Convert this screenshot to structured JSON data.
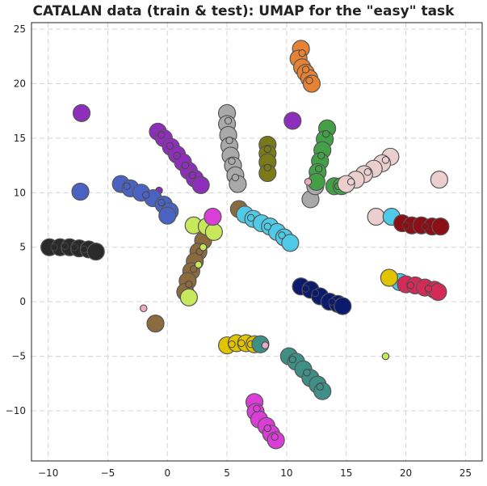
{
  "chart_data": {
    "type": "scatter",
    "title": "CATALAN data (train & test): UMAP for the \"easy\" task",
    "xlabel": "",
    "ylabel": "",
    "xlim": [
      -11.4,
      26.4
    ],
    "ylim": [
      -14.6,
      25.6
    ],
    "xticks": [
      -10,
      -5,
      0,
      5,
      10,
      15,
      20,
      25
    ],
    "yticks": [
      -10,
      -5,
      0,
      5,
      10,
      15,
      20,
      25
    ],
    "grid": true,
    "legend": "none",
    "series": [
      {
        "color": "#e88233",
        "big": [
          [
            11.2,
            23.2
          ],
          [
            11.0,
            22.3
          ],
          [
            11.3,
            21.5
          ],
          [
            11.6,
            21.0
          ],
          [
            11.9,
            20.5
          ],
          [
            12.1,
            20.0
          ]
        ],
        "small": [
          [
            11.3,
            22.8
          ],
          [
            11.6,
            21.3
          ],
          [
            11.9,
            20.3
          ]
        ]
      },
      {
        "color": "#8e2fbb",
        "big": [
          [
            -7.2,
            17.3
          ],
          [
            10.5,
            16.6
          ],
          [
            -0.8,
            15.6
          ],
          [
            -0.3,
            15.0
          ],
          [
            0.3,
            14.2
          ],
          [
            0.8,
            13.5
          ],
          [
            1.3,
            12.8
          ],
          [
            1.8,
            12.0
          ],
          [
            2.3,
            11.3
          ],
          [
            2.8,
            10.7
          ]
        ],
        "small": [
          [
            -0.5,
            15.3
          ],
          [
            0.2,
            14.3
          ],
          [
            0.8,
            13.4
          ],
          [
            1.5,
            12.5
          ],
          [
            2.1,
            11.6
          ],
          [
            -0.7,
            10.2
          ],
          [
            4.0,
            7.8
          ],
          [
            3.4,
            6.2
          ]
        ]
      },
      {
        "color": "#a9a9a9",
        "big": [
          [
            5.0,
            17.3
          ],
          [
            5.0,
            16.3
          ],
          [
            5.1,
            15.3
          ],
          [
            5.2,
            14.3
          ],
          [
            5.3,
            13.4
          ],
          [
            5.5,
            12.5
          ],
          [
            5.7,
            11.6
          ],
          [
            5.9,
            10.8
          ],
          [
            12.0,
            9.4
          ],
          [
            12.4,
            10.6
          ]
        ],
        "small": [
          [
            5.1,
            16.6
          ],
          [
            5.2,
            14.8
          ],
          [
            5.4,
            12.9
          ],
          [
            5.7,
            11.4
          ]
        ]
      },
      {
        "color": "#43a047",
        "big": [
          [
            13.4,
            15.9
          ],
          [
            13.2,
            14.9
          ],
          [
            13.0,
            13.9
          ],
          [
            12.8,
            12.9
          ],
          [
            12.6,
            11.9
          ],
          [
            12.5,
            11.0
          ],
          [
            14.0,
            10.6
          ],
          [
            14.6,
            10.6
          ]
        ],
        "small": [
          [
            13.3,
            15.4
          ],
          [
            12.9,
            13.4
          ],
          [
            12.7,
            12.2
          ],
          [
            14.3,
            10.6
          ]
        ]
      },
      {
        "color": "#7a7a18",
        "big": [
          [
            8.4,
            14.4
          ],
          [
            8.4,
            13.6
          ],
          [
            8.4,
            12.8
          ],
          [
            8.4,
            11.8
          ]
        ],
        "small": [
          [
            8.4,
            14.0
          ],
          [
            8.4,
            12.3
          ]
        ]
      },
      {
        "color": "#ebcfcf",
        "big": [
          [
            18.7,
            13.3
          ],
          [
            18.0,
            12.7
          ],
          [
            17.3,
            12.2
          ],
          [
            16.5,
            11.7
          ],
          [
            15.8,
            11.2
          ],
          [
            15.0,
            10.8
          ],
          [
            17.5,
            7.8
          ],
          [
            22.8,
            11.2
          ]
        ],
        "small": [
          [
            18.3,
            13.0
          ],
          [
            16.8,
            11.9
          ],
          [
            15.4,
            11.0
          ]
        ]
      },
      {
        "color": "#4a63c2",
        "big": [
          [
            -7.3,
            10.1
          ],
          [
            -3.9,
            10.8
          ],
          [
            -3.1,
            10.4
          ],
          [
            -2.2,
            10.0
          ],
          [
            -1.2,
            9.5
          ],
          [
            -0.3,
            8.9
          ],
          [
            0.2,
            8.3
          ],
          [
            0.0,
            7.9
          ]
        ],
        "small": [
          [
            -3.4,
            10.6
          ],
          [
            -1.8,
            9.8
          ],
          [
            -0.5,
            9.1
          ]
        ]
      },
      {
        "color": "#2a2a2a",
        "big": [
          [
            -9.9,
            5.0
          ],
          [
            -9.0,
            5.0
          ],
          [
            -8.2,
            5.0
          ],
          [
            -7.4,
            4.9
          ],
          [
            -6.6,
            4.8
          ],
          [
            -6.0,
            4.6
          ]
        ],
        "small": [
          [
            -9.5,
            5.0
          ],
          [
            -8.6,
            5.1
          ],
          [
            -7.8,
            5.0
          ],
          [
            -7.0,
            4.8
          ]
        ]
      },
      {
        "color": "#8b6b3d",
        "big": [
          [
            3.0,
            5.6
          ],
          [
            2.6,
            4.6
          ],
          [
            2.3,
            3.7
          ],
          [
            2.0,
            2.8
          ],
          [
            1.7,
            1.9
          ],
          [
            1.5,
            0.9
          ],
          [
            -1.0,
            -2.0
          ],
          [
            6.0,
            8.5
          ]
        ],
        "small": [
          [
            2.7,
            4.6
          ],
          [
            2.2,
            3.0
          ],
          [
            1.8,
            1.6
          ]
        ]
      },
      {
        "color": "#c7e85a",
        "big": [
          [
            2.2,
            7.0
          ],
          [
            3.3,
            6.9
          ],
          [
            3.9,
            6.4
          ],
          [
            1.8,
            0.4
          ]
        ],
        "small": [
          [
            3.0,
            5.0
          ],
          [
            2.6,
            3.4
          ],
          [
            18.3,
            -5.0
          ]
        ]
      },
      {
        "color": "#4ec9e6",
        "big": [
          [
            6.5,
            8.0
          ],
          [
            7.2,
            7.6
          ],
          [
            7.9,
            7.2
          ],
          [
            8.6,
            6.9
          ],
          [
            9.2,
            6.4
          ],
          [
            9.8,
            5.9
          ],
          [
            10.3,
            5.4
          ],
          [
            18.8,
            7.8
          ],
          [
            19.5,
            1.8
          ]
        ],
        "small": [
          [
            7.0,
            7.7
          ],
          [
            8.4,
            6.9
          ],
          [
            9.6,
            6.1
          ]
        ]
      },
      {
        "color": "#8b0f14",
        "big": [
          [
            19.7,
            7.2
          ],
          [
            20.5,
            7.0
          ],
          [
            21.3,
            7.0
          ],
          [
            22.2,
            6.9
          ],
          [
            22.9,
            6.9
          ]
        ],
        "small": [
          [
            20.0,
            7.0
          ],
          [
            21.6,
            6.9
          ]
        ]
      },
      {
        "color": "#e0c400",
        "big": [
          [
            18.6,
            2.2
          ],
          [
            5.0,
            -4.0
          ],
          [
            5.8,
            -3.8
          ],
          [
            6.6,
            -3.8
          ],
          [
            7.3,
            -3.9
          ]
        ],
        "small": [
          [
            5.4,
            -3.9
          ],
          [
            6.2,
            -3.8
          ],
          [
            7.0,
            -3.9
          ]
        ]
      },
      {
        "color": "#d42a58",
        "big": [
          [
            20.0,
            1.6
          ],
          [
            20.8,
            1.5
          ],
          [
            21.6,
            1.3
          ],
          [
            22.4,
            1.1
          ],
          [
            22.7,
            0.9
          ]
        ],
        "small": [
          [
            20.4,
            1.5
          ],
          [
            21.9,
            1.2
          ]
        ]
      },
      {
        "color": "#0c1a6e",
        "big": [
          [
            11.2,
            1.4
          ],
          [
            12.0,
            1.1
          ],
          [
            12.8,
            0.5
          ],
          [
            13.6,
            0.0
          ],
          [
            14.3,
            -0.2
          ],
          [
            14.7,
            -0.4
          ]
        ],
        "small": [
          [
            11.6,
            1.2
          ],
          [
            12.4,
            0.8
          ],
          [
            13.8,
            0.0
          ]
        ]
      },
      {
        "color": "#3e8f85",
        "big": [
          [
            7.8,
            -3.9
          ],
          [
            10.2,
            -5.0
          ],
          [
            10.8,
            -5.5
          ],
          [
            11.4,
            -6.2
          ],
          [
            12.0,
            -7.0
          ],
          [
            12.6,
            -7.6
          ],
          [
            13.0,
            -8.2
          ]
        ],
        "small": [
          [
            10.5,
            -5.3
          ],
          [
            11.7,
            -6.5
          ],
          [
            12.8,
            -7.8
          ]
        ]
      },
      {
        "color": "#db3ed6",
        "big": [
          [
            7.3,
            -9.2
          ],
          [
            7.4,
            -10.1
          ],
          [
            7.7,
            -10.8
          ],
          [
            8.3,
            -11.4
          ],
          [
            8.7,
            -12.1
          ],
          [
            9.1,
            -12.7
          ],
          [
            3.8,
            7.8
          ]
        ],
        "small": [
          [
            7.5,
            -9.8
          ],
          [
            8.4,
            -11.6
          ],
          [
            9.0,
            -12.4
          ]
        ]
      },
      {
        "color": "#ebaac4",
        "big": [],
        "small": [
          [
            -2.0,
            -0.6
          ],
          [
            8.2,
            -4.0
          ],
          [
            11.8,
            11.0
          ]
        ]
      }
    ]
  }
}
